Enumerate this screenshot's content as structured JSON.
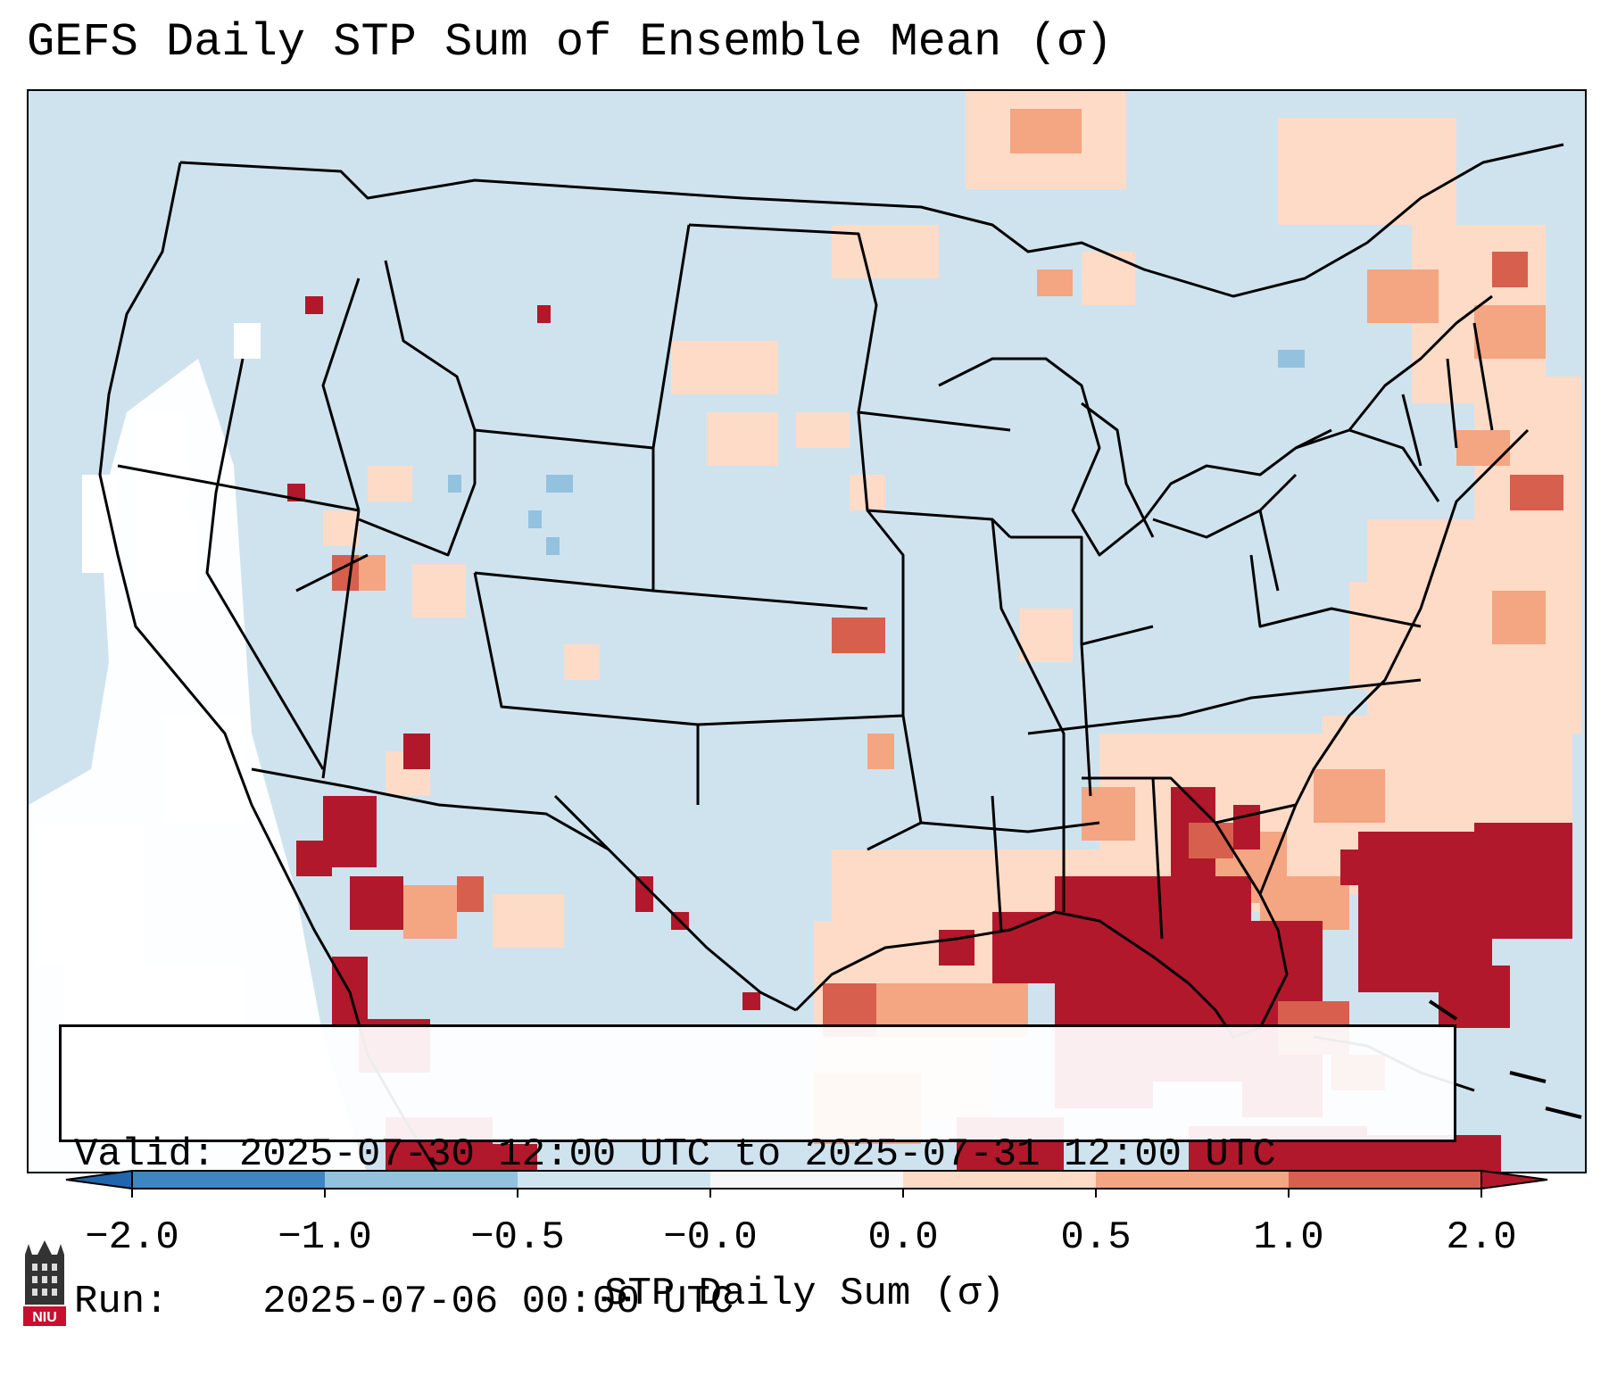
{
  "title": "GEFS Daily STP Sum of Ensemble Mean (σ)",
  "info": {
    "valid_label": "Valid:",
    "valid_value": "2025-07-30 12:00 UTC to 2025-07-31 12:00 UTC",
    "run_label": "Run:",
    "run_value": "2025-07-06 00:00 UTC"
  },
  "colorbar": {
    "label": "STP Daily Sum (σ)",
    "ticks": [
      "−2.0",
      "−1.0",
      "−0.5",
      "−0.0",
      "0.0",
      "0.5",
      "1.0",
      "2.0"
    ],
    "bins": [
      {
        "range": "-2.0 to -1.0",
        "color": "#3e86c2"
      },
      {
        "range": "-1.0 to -0.5",
        "color": "#92c2de"
      },
      {
        "range": "-0.5 to -0.0",
        "color": "#d1e5f0"
      },
      {
        "range": "-0.0 to 0.0",
        "color": "#f7f7f7"
      },
      {
        "range": "0.0 to 0.5",
        "color": "#fddbc7"
      },
      {
        "range": "0.5 to 1.0",
        "color": "#f4a582"
      },
      {
        "range": "1.0 to 2.0",
        "color": "#d6604d"
      }
    ],
    "under_color": "#2166ac",
    "over_color": "#b2182b"
  },
  "map": {
    "ocean_background": "#cfe3ef",
    "outline_color": "#000000"
  },
  "logo": {
    "text": "NIU",
    "color": "#c8102e"
  }
}
